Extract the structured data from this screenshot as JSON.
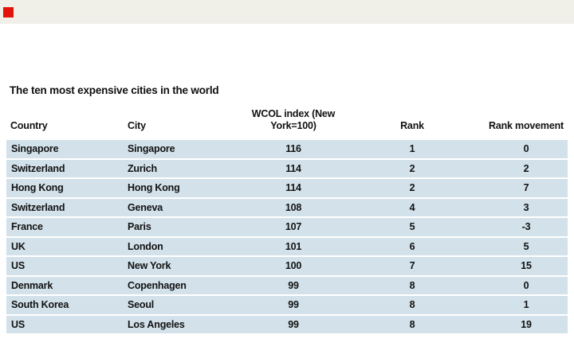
{
  "page": {
    "top_band_color": "#f0efe8",
    "accent_red": "#e3120b",
    "row_color": "#d2e1ea",
    "text_color": "#121212"
  },
  "title": "The ten most expensive cities in the world",
  "table": {
    "headers": {
      "country": "Country",
      "city": "City",
      "wcol_line1": "WCOL index (New",
      "wcol_line2": "York=100)",
      "rank": "Rank",
      "movement": "Rank movement"
    },
    "rows": [
      {
        "country": "Singapore",
        "city": "Singapore",
        "index": "116",
        "rank": "1",
        "movement": "0"
      },
      {
        "country": "Switzerland",
        "city": "Zurich",
        "index": "114",
        "rank": "2",
        "movement": "2"
      },
      {
        "country": "Hong Kong",
        "city": "Hong Kong",
        "index": "114",
        "rank": "2",
        "movement": "7"
      },
      {
        "country": "Switzerland",
        "city": "Geneva",
        "index": "108",
        "rank": "4",
        "movement": "3"
      },
      {
        "country": "France",
        "city": "Paris",
        "index": "107",
        "rank": "5",
        "movement": "-3"
      },
      {
        "country": "UK",
        "city": "London",
        "index": "101",
        "rank": "6",
        "movement": "5"
      },
      {
        "country": "US",
        "city": "New York",
        "index": "100",
        "rank": "7",
        "movement": "15"
      },
      {
        "country": "Denmark",
        "city": "Copenhagen",
        "index": "99",
        "rank": "8",
        "movement": "0"
      },
      {
        "country": "South Korea",
        "city": "Seoul",
        "index": "99",
        "rank": "8",
        "movement": "1"
      },
      {
        "country": "US",
        "city": "Los Angeles",
        "index": "99",
        "rank": "8",
        "movement": "19"
      }
    ]
  },
  "chart_data": {
    "type": "table",
    "title": "The ten most expensive cities in the world",
    "columns": [
      "Country",
      "City",
      "WCOL index (New York=100)",
      "Rank",
      "Rank movement"
    ],
    "rows": [
      [
        "Singapore",
        "Singapore",
        116,
        1,
        0
      ],
      [
        "Switzerland",
        "Zurich",
        114,
        2,
        2
      ],
      [
        "Hong Kong",
        "Hong Kong",
        114,
        2,
        7
      ],
      [
        "Switzerland",
        "Geneva",
        108,
        4,
        3
      ],
      [
        "France",
        "Paris",
        107,
        5,
        -3
      ],
      [
        "UK",
        "London",
        101,
        6,
        5
      ],
      [
        "US",
        "New York",
        100,
        7,
        15
      ],
      [
        "Denmark",
        "Copenhagen",
        99,
        8,
        0
      ],
      [
        "South Korea",
        "Seoul",
        99,
        8,
        1
      ],
      [
        "US",
        "Los Angeles",
        99,
        8,
        19
      ]
    ],
    "layout": {
      "row_stripe_color": "#d2e1ea",
      "header_align": "bottom",
      "numeric_columns_centered": true
    }
  }
}
